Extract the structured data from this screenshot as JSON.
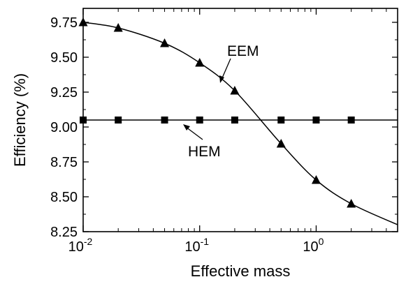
{
  "chart_data": {
    "type": "line",
    "xscale": "log",
    "xlim": [
      0.01,
      5
    ],
    "ylim": [
      8.25,
      9.85
    ],
    "xlabel": "Effective mass",
    "ylabel": "Efficiency (%)",
    "x_ticks": [
      {
        "value": 0.01,
        "base": "10",
        "exp": "-2"
      },
      {
        "value": 0.1,
        "base": "10",
        "exp": "-1"
      },
      {
        "value": 1,
        "base": "10",
        "exp": "0"
      }
    ],
    "y_ticks": [
      {
        "value": 8.25,
        "label": "8.25"
      },
      {
        "value": 8.5,
        "label": "8.50"
      },
      {
        "value": 8.75,
        "label": "8.75"
      },
      {
        "value": 9.0,
        "label": "9.00"
      },
      {
        "value": 9.25,
        "label": "9.25"
      },
      {
        "value": 9.5,
        "label": "9.50"
      },
      {
        "value": 9.75,
        "label": "9.75"
      }
    ],
    "grid": false,
    "series": [
      {
        "name": "EEM",
        "marker": "triangle",
        "x": [
          0.01,
          0.02,
          0.05,
          0.1,
          0.2,
          0.5,
          1,
          2
        ],
        "y": [
          9.75,
          9.71,
          9.6,
          9.46,
          9.26,
          8.88,
          8.62,
          8.45
        ],
        "curve_x": [
          0.01,
          0.02,
          0.05,
          0.1,
          0.2,
          0.5,
          1,
          2,
          5
        ],
        "curve_y": [
          9.75,
          9.71,
          9.6,
          9.46,
          9.26,
          8.88,
          8.62,
          8.45,
          8.3
        ]
      },
      {
        "name": "HEM",
        "marker": "square",
        "x": [
          0.01,
          0.02,
          0.05,
          0.1,
          0.2,
          0.5,
          1,
          2
        ],
        "y": [
          9.05,
          9.05,
          9.05,
          9.05,
          9.05,
          9.05,
          9.05,
          9.05
        ],
        "curve_x": [
          0.01,
          5
        ],
        "curve_y": [
          9.05,
          9.05
        ]
      }
    ]
  }
}
